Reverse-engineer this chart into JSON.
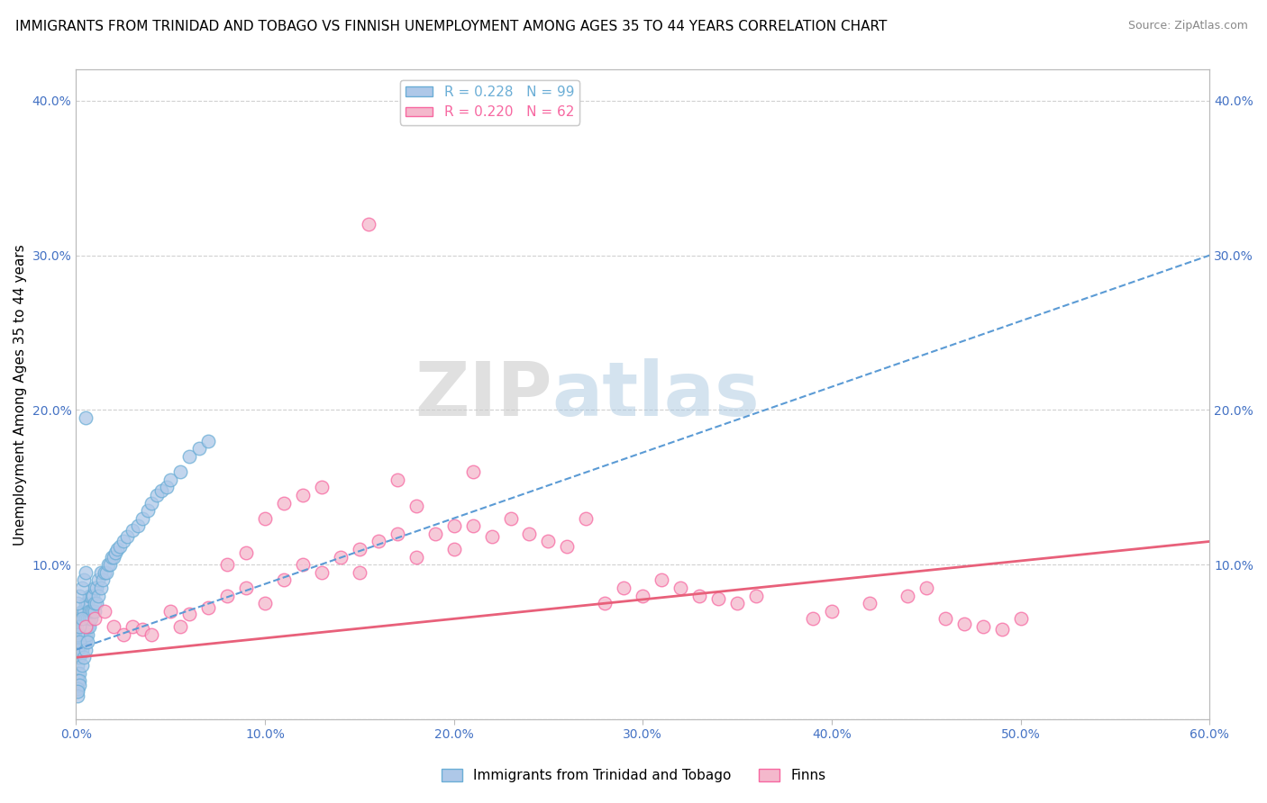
{
  "title": "IMMIGRANTS FROM TRINIDAD AND TOBAGO VS FINNISH UNEMPLOYMENT AMONG AGES 35 TO 44 YEARS CORRELATION CHART",
  "source": "Source: ZipAtlas.com",
  "ylabel": "Unemployment Among Ages 35 to 44 years",
  "xlim": [
    0.0,
    0.6
  ],
  "ylim": [
    0.0,
    0.42
  ],
  "xticks": [
    0.0,
    0.1,
    0.2,
    0.3,
    0.4,
    0.5,
    0.6
  ],
  "xtick_labels": [
    "0.0%",
    "10.0%",
    "20.0%",
    "30.0%",
    "40.0%",
    "50.0%",
    "60.0%"
  ],
  "yticks": [
    0.0,
    0.1,
    0.2,
    0.3,
    0.4
  ],
  "ytick_labels": [
    "",
    "10.0%",
    "20.0%",
    "30.0%",
    "40.0%"
  ],
  "legend_R_entries": [
    {
      "label": "R = 0.228   N = 99",
      "color": "#6baed6"
    },
    {
      "label": "R = 0.220   N = 62",
      "color": "#f768a1"
    }
  ],
  "legend_labels_bottom": [
    "Immigrants from Trinidad and Tobago",
    "Finns"
  ],
  "blue_scatter_x": [
    0.001,
    0.001,
    0.001,
    0.001,
    0.001,
    0.001,
    0.001,
    0.002,
    0.002,
    0.002,
    0.002,
    0.002,
    0.002,
    0.003,
    0.003,
    0.003,
    0.003,
    0.003,
    0.004,
    0.004,
    0.004,
    0.004,
    0.004,
    0.005,
    0.005,
    0.005,
    0.005,
    0.005,
    0.006,
    0.006,
    0.006,
    0.006,
    0.007,
    0.007,
    0.007,
    0.007,
    0.008,
    0.008,
    0.008,
    0.009,
    0.009,
    0.01,
    0.01,
    0.01,
    0.011,
    0.011,
    0.012,
    0.012,
    0.013,
    0.013,
    0.014,
    0.015,
    0.016,
    0.017,
    0.018,
    0.019,
    0.02,
    0.021,
    0.022,
    0.023,
    0.025,
    0.027,
    0.03,
    0.033,
    0.035,
    0.038,
    0.04,
    0.043,
    0.045,
    0.048,
    0.05,
    0.055,
    0.06,
    0.065,
    0.07,
    0.001,
    0.002,
    0.003,
    0.004,
    0.005,
    0.001,
    0.002,
    0.003,
    0.001,
    0.002,
    0.001,
    0.001,
    0.002,
    0.001,
    0.001,
    0.002,
    0.001,
    0.002,
    0.001,
    0.001,
    0.003,
    0.004,
    0.005,
    0.006
  ],
  "blue_scatter_y": [
    0.035,
    0.04,
    0.045,
    0.05,
    0.055,
    0.06,
    0.065,
    0.04,
    0.045,
    0.05,
    0.055,
    0.06,
    0.065,
    0.045,
    0.05,
    0.055,
    0.06,
    0.07,
    0.05,
    0.055,
    0.06,
    0.065,
    0.07,
    0.05,
    0.055,
    0.06,
    0.065,
    0.075,
    0.055,
    0.06,
    0.065,
    0.075,
    0.06,
    0.065,
    0.07,
    0.08,
    0.065,
    0.07,
    0.08,
    0.07,
    0.08,
    0.07,
    0.075,
    0.085,
    0.075,
    0.085,
    0.08,
    0.09,
    0.085,
    0.095,
    0.09,
    0.095,
    0.095,
    0.1,
    0.1,
    0.105,
    0.105,
    0.108,
    0.11,
    0.112,
    0.115,
    0.118,
    0.122,
    0.125,
    0.13,
    0.135,
    0.14,
    0.145,
    0.148,
    0.15,
    0.155,
    0.16,
    0.17,
    0.175,
    0.18,
    0.075,
    0.08,
    0.085,
    0.09,
    0.095,
    0.055,
    0.06,
    0.065,
    0.045,
    0.05,
    0.03,
    0.025,
    0.03,
    0.025,
    0.02,
    0.025,
    0.02,
    0.022,
    0.015,
    0.018,
    0.035,
    0.04,
    0.045,
    0.05
  ],
  "blue_outlier_x": [
    0.005
  ],
  "blue_outlier_y": [
    0.195
  ],
  "pink_scatter_x": [
    0.005,
    0.01,
    0.015,
    0.02,
    0.025,
    0.03,
    0.035,
    0.04,
    0.05,
    0.055,
    0.06,
    0.07,
    0.08,
    0.09,
    0.1,
    0.11,
    0.12,
    0.13,
    0.14,
    0.15,
    0.16,
    0.17,
    0.18,
    0.19,
    0.2,
    0.21,
    0.22,
    0.23,
    0.24,
    0.25,
    0.26,
    0.27,
    0.28,
    0.29,
    0.3,
    0.31,
    0.32,
    0.33,
    0.34,
    0.35,
    0.36,
    0.39,
    0.4,
    0.42,
    0.44,
    0.45,
    0.46,
    0.47,
    0.48,
    0.49,
    0.5,
    0.1,
    0.15,
    0.2,
    0.12,
    0.13,
    0.08,
    0.09,
    0.11,
    0.17,
    0.18,
    0.21
  ],
  "pink_scatter_y": [
    0.06,
    0.065,
    0.07,
    0.06,
    0.055,
    0.06,
    0.058,
    0.055,
    0.07,
    0.06,
    0.068,
    0.072,
    0.08,
    0.085,
    0.075,
    0.09,
    0.1,
    0.095,
    0.105,
    0.11,
    0.115,
    0.12,
    0.105,
    0.12,
    0.125,
    0.125,
    0.118,
    0.13,
    0.12,
    0.115,
    0.112,
    0.13,
    0.075,
    0.085,
    0.08,
    0.09,
    0.085,
    0.08,
    0.078,
    0.075,
    0.08,
    0.065,
    0.07,
    0.075,
    0.08,
    0.085,
    0.065,
    0.062,
    0.06,
    0.058,
    0.065,
    0.13,
    0.095,
    0.11,
    0.145,
    0.15,
    0.1,
    0.108,
    0.14,
    0.155,
    0.138,
    0.16
  ],
  "pink_outlier_x": [
    0.155
  ],
  "pink_outlier_y": [
    0.32
  ],
  "blue_line_x": [
    0.0,
    0.6
  ],
  "blue_line_y": [
    0.045,
    0.3
  ],
  "pink_line_x": [
    0.0,
    0.6
  ],
  "pink_line_y": [
    0.04,
    0.115
  ],
  "watermark_zip": "ZIP",
  "watermark_atlas": "atlas",
  "bg_color": "#ffffff",
  "scatter_blue_color": "#aec8e8",
  "scatter_pink_color": "#f4b8cc",
  "scatter_blue_edge": "#6baed6",
  "scatter_pink_edge": "#f768a1",
  "trend_blue_color": "#5b9bd5",
  "trend_pink_color": "#e8607a",
  "grid_color": "#d0d0d0",
  "title_fontsize": 11,
  "axis_label_fontsize": 11,
  "tick_fontsize": 10,
  "legend_fontsize": 11
}
